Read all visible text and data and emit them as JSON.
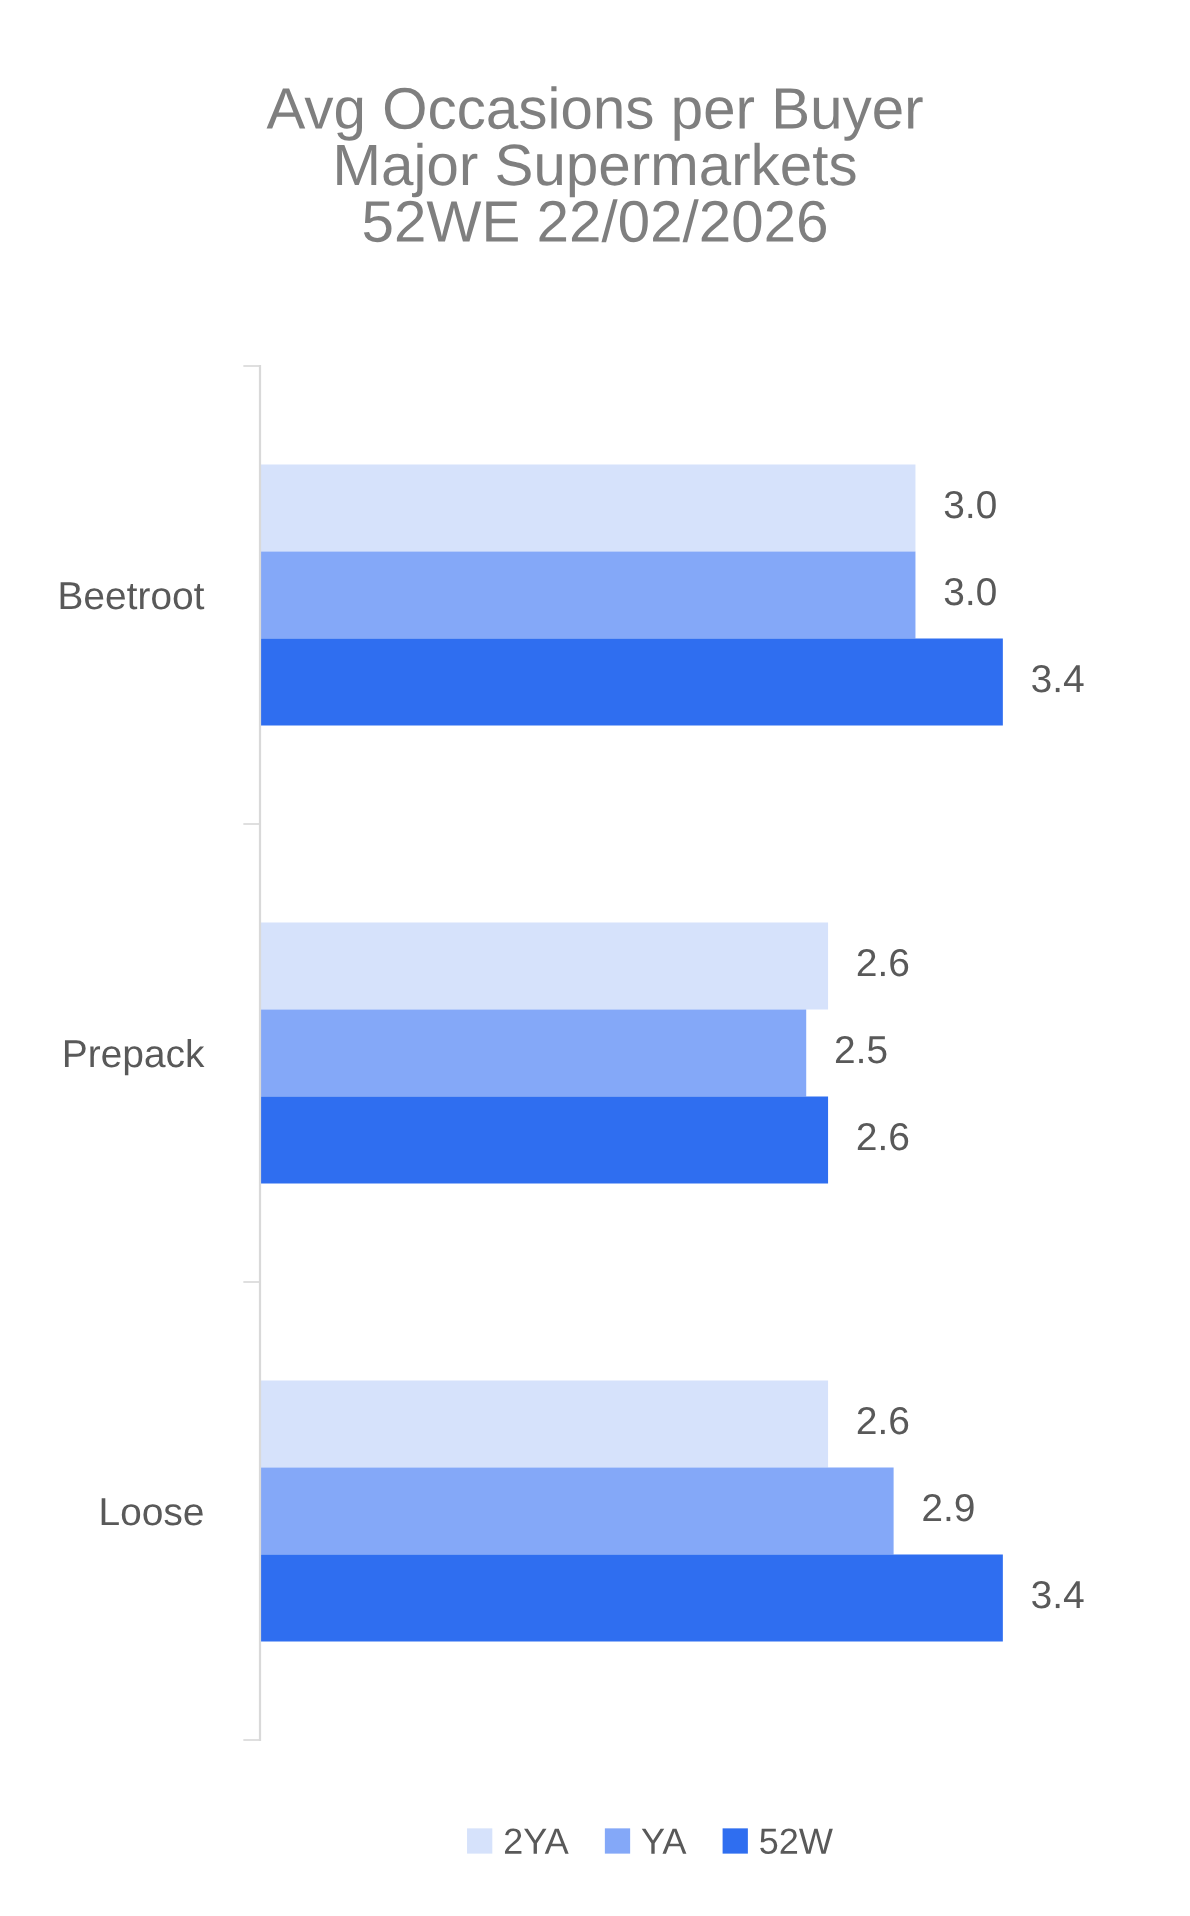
{
  "chart_data": {
    "type": "bar",
    "orientation": "horizontal",
    "title": "Avg Occasions per Buyer\nMajor Supermarkets\n52WE 22/02/2026",
    "categories": [
      "Beetroot",
      "Prepack",
      "Loose"
    ],
    "series": [
      {
        "name": "2YA",
        "color": "#d6e2fb",
        "values": [
          3,
          2.6,
          2.6
        ],
        "value_labels": [
          "3.0",
          "2.6",
          "2.6"
        ]
      },
      {
        "name": "YA",
        "color": "#84a8f8",
        "values": [
          3,
          2.5,
          2.9
        ],
        "value_labels": [
          "3.0",
          "2.5",
          "2.9"
        ]
      },
      {
        "name": "52W",
        "color": "#2f6ef0",
        "values": [
          3.4,
          2.6,
          3.4
        ],
        "value_labels": [
          "3.4",
          "2.6",
          "3.4"
        ]
      }
    ],
    "legend": "bottom",
    "grid": false,
    "tick_labels": "y"
  }
}
